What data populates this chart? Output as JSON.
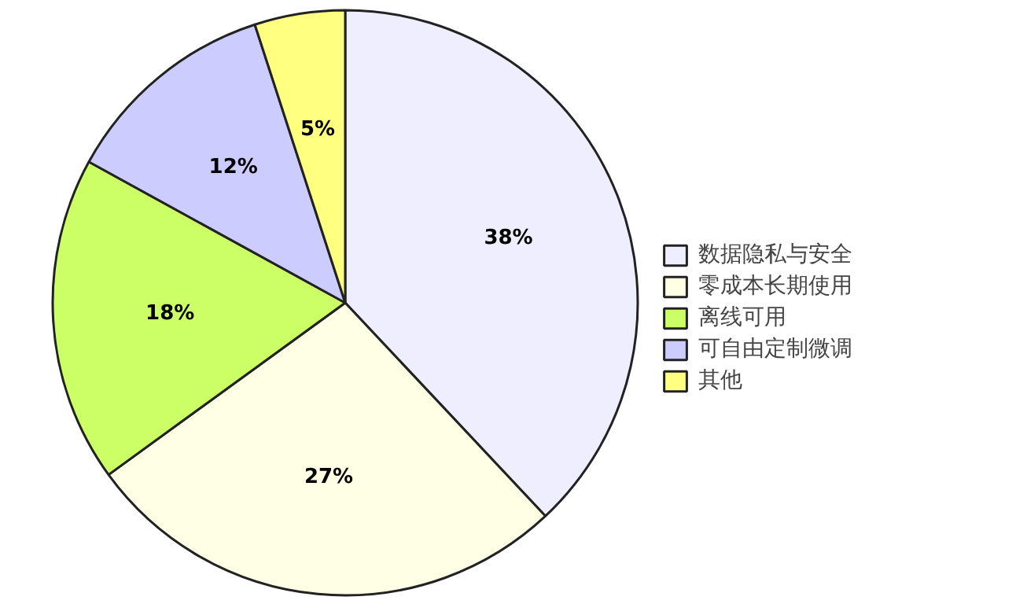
{
  "chart_data": {
    "type": "pie",
    "categories": [
      "数据隐私与安全",
      "零成本长期使用",
      "离线可用",
      "可自由定制微调",
      "其他"
    ],
    "values": [
      38,
      27,
      18,
      12,
      5
    ],
    "colors": [
      "#eeeeff",
      "#ffffe6",
      "#ccff66",
      "#ccccff",
      "#ffff80"
    ],
    "value_labels": [
      "38%",
      "27%",
      "18%",
      "12%",
      "5%"
    ],
    "legend": "right"
  }
}
